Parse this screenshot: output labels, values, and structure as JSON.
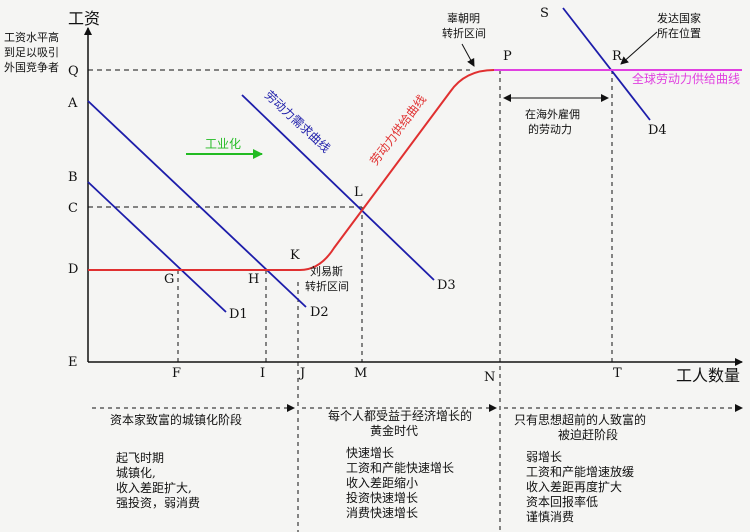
{
  "axes": {
    "y_title": "工资",
    "x_title": "工人数量",
    "y_note": [
      "工资水平高",
      "到足以吸引",
      "外国竞争者"
    ]
  },
  "y_ticks": {
    "Q": "Q",
    "A": "A",
    "B": "B",
    "C": "C",
    "D": "D",
    "E": "E"
  },
  "x_ticks": {
    "F": "F",
    "I": "I",
    "J": "J",
    "M": "M",
    "N": "N",
    "T": "T"
  },
  "points": {
    "G": "G",
    "H": "H",
    "K": "K",
    "L": "L",
    "P": "P",
    "R": "R",
    "S": "S"
  },
  "curves": {
    "d1": "D1",
    "d2": "D2",
    "d3": "D3",
    "d4": "D4",
    "demand_label": "劳动力需求曲线",
    "supply_label": "劳动力供给曲线",
    "global_supply_label": "全球劳动力供给曲线"
  },
  "annotations": {
    "industrialization": "工业化",
    "lewis": [
      "刘易斯",
      "转折区间"
    ],
    "gao_chao_ming": [
      "辜朝明",
      "转折区间"
    ],
    "developed_country": [
      "发达国家",
      "所在位置"
    ],
    "overseas_labor": [
      "在海外雇佣",
      "的劳动力"
    ]
  },
  "phases": [
    {
      "title": [
        "资本家致富的城镇化阶段"
      ],
      "points": [
        "起飞时期",
        "城镇化,",
        "收入差距扩大,",
        "强投资，弱消费"
      ]
    },
    {
      "title": [
        "每个人都受益于经济增长的",
        "黄金时代"
      ],
      "points": [
        "快速增长",
        "工资和产能快速增长",
        "收入差距缩小",
        "投资快速增长",
        "消费快速增长"
      ]
    },
    {
      "title": [
        "只有思想超前的人致富的",
        "被迫赶阶段"
      ],
      "points": [
        "弱增长",
        "工资和产能增速放缓",
        "收入差距再度扩大",
        "资本回报率低",
        "谨慎消费"
      ]
    }
  ],
  "colors": {
    "axis": "#111111",
    "demand": "#1d1daa",
    "supply": "#e03030",
    "global_supply": "#e040e0",
    "arrow_green": "#22bb22"
  }
}
